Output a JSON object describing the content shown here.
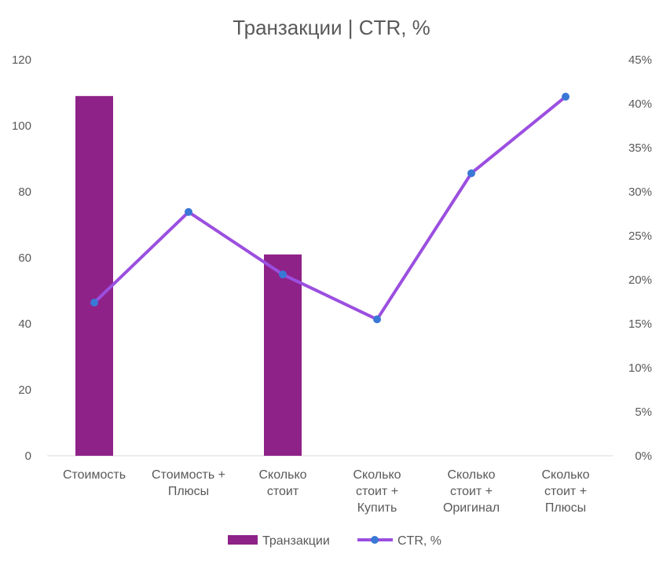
{
  "chart_data": {
    "type": "bar+line",
    "title": "Транзакции | CTR, %",
    "categories": [
      [
        "Стоимость"
      ],
      [
        "Стоимость +",
        "Плюсы"
      ],
      [
        "Сколько",
        "стоит"
      ],
      [
        "Сколько",
        "стоит +",
        "Купить"
      ],
      [
        "Сколько",
        "стоит +",
        "Оригинал"
      ],
      [
        "Сколько",
        "стоит +",
        "Плюсы"
      ]
    ],
    "series": [
      {
        "name": "Транзакции",
        "type": "bar",
        "axis": "left",
        "color": "#8e2288",
        "values": [
          109,
          0,
          61,
          0,
          0,
          0
        ]
      },
      {
        "name": "CTR, %",
        "type": "line",
        "axis": "right",
        "color": "#9b4fe0",
        "marker_color": "#3a78d6",
        "values": [
          17.4,
          27.7,
          20.6,
          15.5,
          32.1,
          40.8
        ]
      }
    ],
    "y_left": {
      "min": 0,
      "max": 120,
      "ticks": [
        "0",
        "20",
        "40",
        "60",
        "80",
        "100",
        "120"
      ]
    },
    "y_right": {
      "min": 0,
      "max": 45,
      "ticks": [
        "0%",
        "5%",
        "10%",
        "15%",
        "20%",
        "25%",
        "30%",
        "35%",
        "40%",
        "45%"
      ]
    },
    "grid": false,
    "legend_position": "bottom"
  }
}
